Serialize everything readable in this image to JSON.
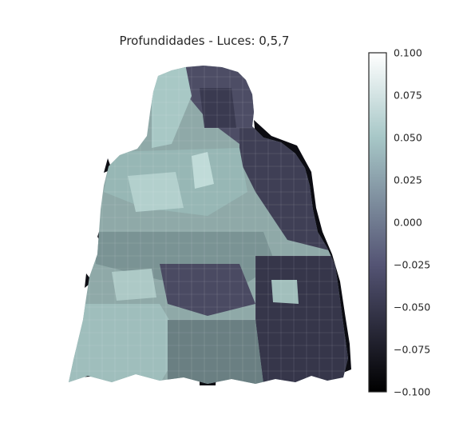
{
  "chart_data": {
    "type": "heatmap",
    "title": "Profundidades - Luces: 0,5,7",
    "xlabel": "",
    "ylabel": "",
    "grid": false,
    "colormap": "bone",
    "colorbar": {
      "min": -0.1,
      "max": 0.1,
      "ticks": [
        0.1,
        0.075,
        0.05,
        0.025,
        0.0,
        -0.025,
        -0.05,
        -0.075,
        -0.1
      ],
      "tick_labels": [
        "0.100",
        "0.075",
        "0.050",
        "0.025",
        "0.000",
        "−0.025",
        "−0.050",
        "−0.075",
        "−0.100"
      ]
    },
    "subject": "3D depth surface",
    "colors": {
      "dark": "#0b0b10",
      "mid": "#53536b",
      "light": "#a9c9c6",
      "white": "#f6fbfb"
    }
  }
}
